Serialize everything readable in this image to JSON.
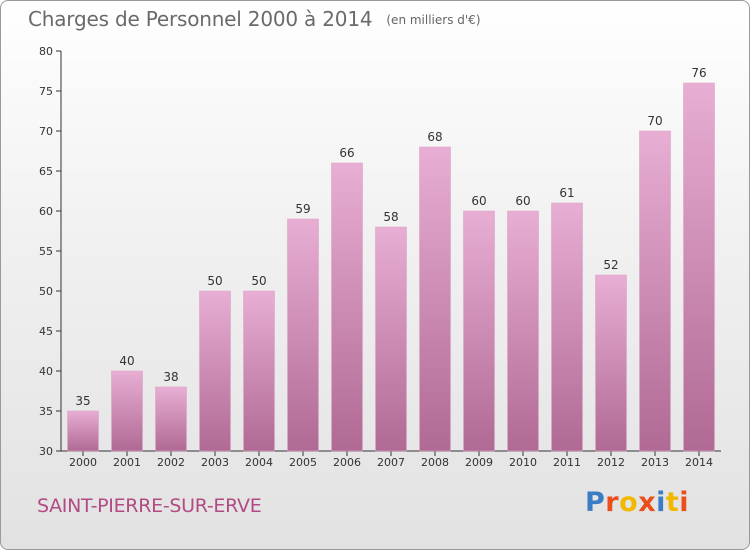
{
  "header": {
    "title": "Charges de Personnel 2000 à 2014",
    "subtitle": "(en milliers d'€)"
  },
  "commune": "SAINT-PIERRE-SUR-ERVE",
  "logo": {
    "text": "Proxiti",
    "letter_colors": [
      "#3b7cc4",
      "#e94e1b",
      "#f2b800",
      "#e94e1b",
      "#3b7cc4",
      "#f2b800",
      "#e94e1b"
    ]
  },
  "colors": {
    "bar_top": "#e8aed3",
    "bar_bottom": "#b06a94",
    "commune_text": "#b24a83"
  },
  "chart_data": {
    "type": "bar",
    "categories": [
      "2000",
      "2001",
      "2002",
      "2003",
      "2004",
      "2005",
      "2006",
      "2007",
      "2008",
      "2009",
      "2010",
      "2011",
      "2012",
      "2013",
      "2014"
    ],
    "values": [
      35,
      40,
      38,
      50,
      50,
      59,
      66,
      58,
      68,
      60,
      60,
      61,
      52,
      70,
      76
    ],
    "ylim": [
      30,
      80
    ],
    "yticks": [
      30,
      35,
      40,
      45,
      50,
      55,
      60,
      65,
      70,
      75,
      80
    ],
    "grid": false
  }
}
